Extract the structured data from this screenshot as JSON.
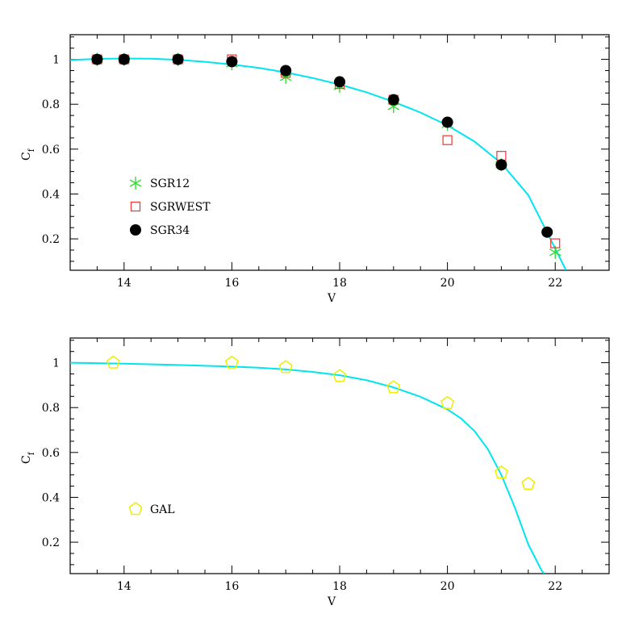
{
  "chart_data": [
    {
      "type": "scatter",
      "xlabel": "V",
      "ylabel": "C",
      "ylabel_sub": "f",
      "xlim": [
        13,
        23
      ],
      "ylim": [
        0.06,
        1.11
      ],
      "xticks": [
        14,
        16,
        18,
        20,
        22
      ],
      "yticks": [
        0.2,
        0.4,
        0.6,
        0.8,
        1
      ],
      "grid": false,
      "legend_position": "left-center",
      "colors": {
        "curve": "#00e5ee",
        "SGR12": "#33dd33",
        "SGRWEST": "#ee3333",
        "SGR34": "#000000"
      },
      "curve": {
        "x": [
          13.0,
          13.5,
          14.0,
          14.5,
          15.0,
          15.5,
          16.0,
          16.5,
          17.0,
          17.5,
          18.0,
          18.5,
          19.0,
          19.5,
          20.0,
          20.5,
          21.0,
          21.5,
          22.0,
          22.2
        ],
        "y": [
          0.997,
          1.002,
          1.004,
          1.003,
          0.998,
          0.989,
          0.977,
          0.962,
          0.942,
          0.917,
          0.888,
          0.853,
          0.811,
          0.763,
          0.706,
          0.634,
          0.537,
          0.395,
          0.157,
          0.06
        ]
      },
      "series": [
        {
          "name": "SGR12",
          "marker": "star",
          "x": [
            13.5,
            14,
            15,
            16,
            17,
            18,
            19,
            20,
            21,
            22
          ],
          "y": [
            1.0,
            1.0,
            1.0,
            0.98,
            0.92,
            0.88,
            0.79,
            0.71,
            0.53,
            0.14
          ]
        },
        {
          "name": "SGRWEST",
          "marker": "square",
          "x": [
            13.5,
            14,
            15,
            16,
            17,
            18,
            19,
            20,
            21,
            22
          ],
          "y": [
            1.0,
            1.0,
            1.0,
            1.0,
            0.94,
            0.89,
            0.82,
            0.64,
            0.57,
            0.18
          ]
        },
        {
          "name": "SGR34",
          "marker": "circle",
          "x": [
            13.5,
            14,
            15,
            16,
            17,
            18,
            19,
            20,
            21,
            21.85
          ],
          "y": [
            1.0,
            1.0,
            1.0,
            0.99,
            0.95,
            0.9,
            0.82,
            0.72,
            0.53,
            0.23
          ]
        }
      ]
    },
    {
      "type": "scatter",
      "xlabel": "V",
      "ylabel": "C",
      "ylabel_sub": "f",
      "xlim": [
        13,
        23
      ],
      "ylim": [
        0.06,
        1.11
      ],
      "xticks": [
        14,
        16,
        18,
        20,
        22
      ],
      "yticks": [
        0.2,
        0.4,
        0.6,
        0.8,
        1
      ],
      "grid": false,
      "legend_position": "left-bottom",
      "colors": {
        "curve": "#00e5ee",
        "GAL": "#eeee00"
      },
      "curve": {
        "x": [
          13.0,
          14.0,
          15.0,
          16.0,
          16.5,
          17.0,
          17.5,
          18.0,
          18.5,
          19.0,
          19.5,
          20.0,
          20.25,
          20.5,
          20.75,
          21.0,
          21.25,
          21.5,
          21.75,
          21.8
        ],
        "y": [
          1.0,
          0.996,
          0.99,
          0.983,
          0.978,
          0.97,
          0.959,
          0.944,
          0.922,
          0.89,
          0.848,
          0.792,
          0.752,
          0.696,
          0.615,
          0.5,
          0.355,
          0.19,
          0.073,
          0.06
        ]
      },
      "series": [
        {
          "name": "GAL",
          "marker": "pentagon",
          "x": [
            13.8,
            16,
            17,
            18,
            19,
            20,
            21,
            21.5
          ],
          "y": [
            1.0,
            1.0,
            0.98,
            0.94,
            0.89,
            0.82,
            0.51,
            0.46
          ]
        }
      ]
    }
  ]
}
